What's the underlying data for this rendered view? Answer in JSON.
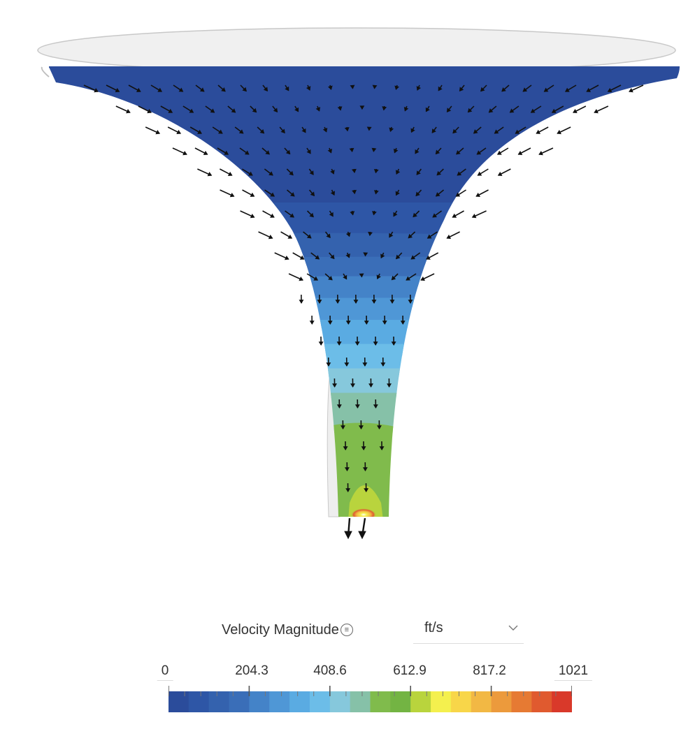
{
  "legend": {
    "title": "Velocity Magnitude",
    "unit": "ft/s",
    "tick_labels": [
      "0",
      "204.3",
      "408.6",
      "612.9",
      "817.2",
      "1021"
    ],
    "colors": [
      "#2b4c9b",
      "#2e56a6",
      "#3462ae",
      "#3a6eb8",
      "#4483c8",
      "#4f97d6",
      "#5aabe2",
      "#6cbde8",
      "#86c8dc",
      "#86c1a8",
      "#80bb4c",
      "#73b443",
      "#b9d43d",
      "#f4f04e",
      "#f8d649",
      "#f2b844",
      "#ec9a3c",
      "#e67a33",
      "#e05a2f",
      "#d9392a"
    ]
  },
  "icons": {
    "menu": "menu-icon",
    "dropdown": "chevron-down-icon"
  }
}
